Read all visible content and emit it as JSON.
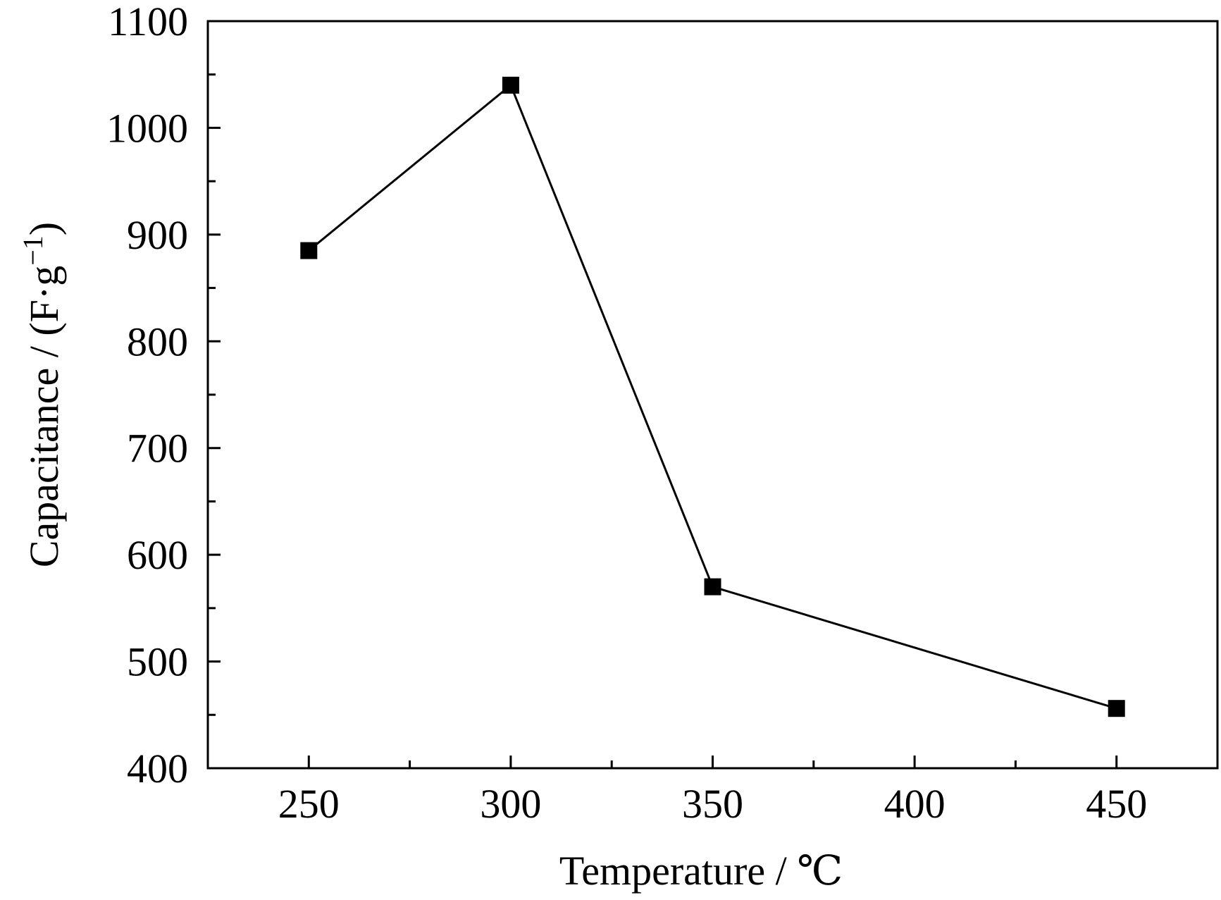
{
  "chart_data": {
    "type": "line",
    "xlabel": "Temperature / ℃",
    "ylabel": "Capacitance / (F·g",
    "ylabel_superscript": "−1",
    "ylabel_close": ")",
    "xlim": [
      225,
      475
    ],
    "ylim": [
      400,
      1100
    ],
    "x_ticks": [
      250,
      300,
      350,
      400,
      450
    ],
    "x_minor_ticks": [
      275,
      325,
      375,
      425
    ],
    "y_ticks": [
      400,
      500,
      600,
      700,
      800,
      900,
      1000,
      1100
    ],
    "y_minor_ticks": [
      450,
      550,
      650,
      750,
      850,
      950,
      1050
    ],
    "grid": false,
    "legend": "none",
    "marker": "square",
    "color": "#000000",
    "series": [
      {
        "x": [
          250,
          300,
          350,
          450
        ],
        "y": [
          885,
          1040,
          570,
          456
        ]
      }
    ]
  }
}
